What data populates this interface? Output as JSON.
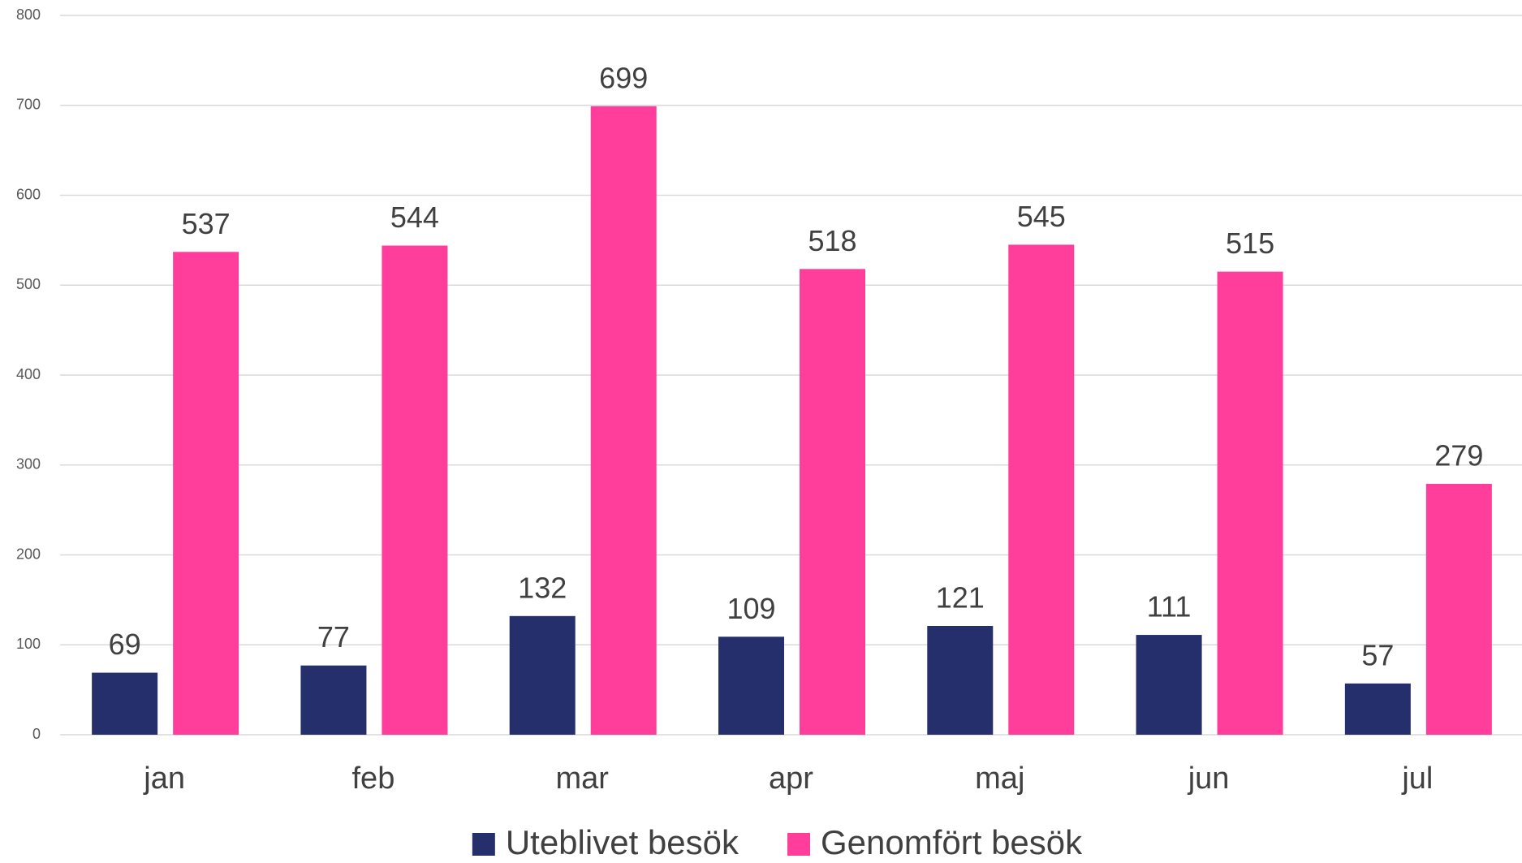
{
  "chart_data": {
    "type": "bar",
    "categories": [
      "jan",
      "feb",
      "mar",
      "apr",
      "maj",
      "jun",
      "jul"
    ],
    "series": [
      {
        "name": "Uteblivet besök",
        "color": "#252f6b",
        "values": [
          69,
          77,
          132,
          109,
          121,
          111,
          57
        ]
      },
      {
        "name": "Genomfört besök",
        "color": "#ff3d9a",
        "values": [
          537,
          544,
          699,
          518,
          545,
          515,
          279
        ]
      }
    ],
    "ylim": [
      0,
      800
    ],
    "yticks": [
      0,
      100,
      200,
      300,
      400,
      500,
      600,
      700,
      800
    ],
    "grid": true,
    "legend": "bottom"
  }
}
